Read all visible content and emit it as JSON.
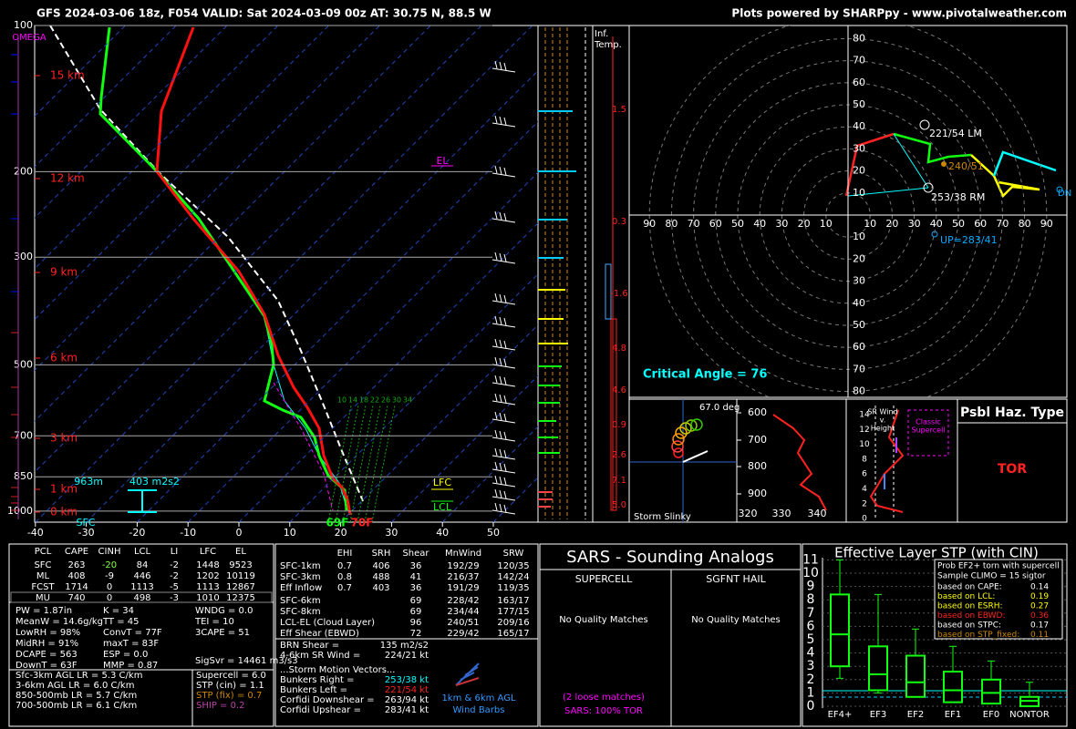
{
  "header": {
    "title": "GFS 2024-03-06 18z, F054  VALID: Sat 2024-03-09 00z  AT: 30.75 N, 88.5 W",
    "credit": "Plots powered by SHARPpy - www.pivotalweather.com"
  },
  "skewt": {
    "omega": "OMEGA",
    "pressures": [
      100,
      200,
      300,
      500,
      700,
      850,
      1000
    ],
    "heights": [
      "15 km",
      "12 km",
      "9 km",
      "6 km",
      "3 km",
      "1 km",
      "0 km"
    ],
    "temps": [
      -40,
      -30,
      -20,
      -10,
      0,
      10,
      20,
      30,
      40,
      50
    ],
    "el": "EL",
    "lfc": "LFC",
    "lcl": "LCL",
    "eff_depth": "963m",
    "eff_srh": "403 m2s2",
    "sfc": "SFC",
    "dewpoint": "69F",
    "temperature": "70F",
    "mixing_ratios": [
      10,
      14,
      18,
      22,
      26,
      30,
      34
    ]
  },
  "inferred_temp": {
    "label": [
      "Inf.",
      "Temp."
    ],
    "values": [
      "1.5",
      "0.3",
      "-1.6",
      "4.8",
      "4.6",
      "0.9",
      "2.6",
      "7.1",
      "5.0"
    ]
  },
  "hodograph": {
    "speeds": [
      10,
      20,
      30,
      40,
      50,
      60,
      70,
      80,
      90
    ],
    "left_mover": "221/54 LM",
    "mean_wind": "240/51",
    "right_mover": "253/38 RM",
    "upshear": "UP=283/41",
    "downshear": "DN",
    "critical_angle": "Critical Angle = 76"
  },
  "slinky": {
    "angle": "67.0 deg",
    "title": "Storm Slinky"
  },
  "theta_e": {
    "pressures": [
      600,
      700,
      800,
      900
    ],
    "thetas": [
      320,
      330,
      340
    ]
  },
  "sr_wind": {
    "heights": [
      14,
      12,
      10,
      8,
      6,
      4,
      2,
      0
    ],
    "title": [
      "SR Wind",
      "v.",
      "Height"
    ],
    "note": [
      "Classic",
      "Supercell"
    ]
  },
  "hazard": {
    "title": "Psbl Haz. Type",
    "type": "TOR"
  },
  "thermo": {
    "header": [
      "PCL",
      "CAPE",
      "CINH",
      "LCL",
      "LI",
      "LFC",
      "EL"
    ],
    "rows": [
      [
        "SFC",
        263,
        -20,
        84,
        -2,
        1448,
        9523
      ],
      [
        "ML",
        408,
        -9,
        446,
        -2,
        1202,
        10119
      ],
      [
        "FCST",
        1714,
        0,
        1113,
        -5,
        1113,
        12867
      ],
      [
        "MU",
        740,
        0,
        498,
        -3,
        1010,
        12375
      ]
    ],
    "indices": [
      [
        "PW = 1.87in",
        "MeanW = 14.6g/kg",
        "LowRH = 98%",
        "MidRH = 91%",
        "DCAPE = 563",
        "DownT = 63F"
      ],
      [
        "K = 34",
        "TT = 45",
        "ConvT = 77F",
        "maxT = 83F",
        "ESP = 0.0",
        "MMP = 0.87"
      ],
      [
        "WNDG = 0.0",
        "TEI = 10",
        "3CAPE = 51"
      ]
    ],
    "sigsvr": "SigSvr = 14461 m3/s3",
    "lapse_rates": [
      "Sfc-3km AGL LR = 5.3 C/km",
      "3-6km AGL LR = 6.0 C/km",
      "850-500mb LR = 5.7 C/km",
      "700-500mb LR = 6.1 C/km"
    ],
    "composites": [
      "Supercell = 6.0",
      "STP (cin) = 1.1",
      "STP (fix) = 0.7",
      "SHIP = 0.2"
    ]
  },
  "kinematics": {
    "header": [
      "EHI",
      "SRH",
      "Shear",
      "MnWind",
      "SRW"
    ],
    "rows": [
      [
        "SFC-1km",
        "0.7",
        406,
        36,
        "192/29",
        "120/35"
      ],
      [
        "SFC-3km",
        "0.8",
        488,
        41,
        "216/37",
        "142/24"
      ],
      [
        "Eff Inflow",
        "0.7",
        403,
        36,
        "191/29",
        "119/35"
      ],
      [
        "SFC-6km",
        null,
        null,
        69,
        "228/42",
        "163/17"
      ],
      [
        "SFC-8km",
        null,
        null,
        69,
        "234/44",
        "177/15"
      ],
      [
        "LCL-EL (Cloud Layer)",
        null,
        null,
        96,
        "240/51",
        "209/16"
      ],
      [
        "Eff Shear (EBWD)",
        null,
        null,
        72,
        "229/42",
        "165/17"
      ]
    ],
    "extra": [
      [
        "BRN Shear =",
        "135 m2/s2"
      ],
      [
        "4-6km SR Wind =",
        "224/21 kt"
      ]
    ],
    "motion_title": "...Storm Motion Vectors...",
    "motion": [
      [
        "Bunkers Right =",
        "253/38 kt"
      ],
      [
        "Bunkers Left =",
        "221/54 kt"
      ],
      [
        "Corfidi Downshear =",
        "263/94 kt"
      ],
      [
        "Corfidi Upshear =",
        "283/41 kt"
      ]
    ],
    "barbs": [
      "1km & 6km AGL",
      "Wind Barbs"
    ]
  },
  "sars": {
    "title": "SARS - Sounding Analogs",
    "supercell": "SUPERCELL",
    "hail": "SGFNT HAIL",
    "supercell_matches": "No Quality Matches",
    "hail_matches": "No Quality Matches",
    "loose": "(2 loose matches)",
    "result": "SARS: 100% TOR"
  },
  "stp": {
    "title": "Effective Layer STP (with CIN)",
    "yticks": [
      0,
      1,
      2,
      3,
      4,
      5,
      6,
      7,
      8,
      9,
      10,
      11
    ],
    "categories": [
      "EF4+",
      "EF3",
      "EF2",
      "EF1",
      "EF0",
      "NONTOR"
    ],
    "boxes": [
      [
        2.1,
        3.0,
        5.4,
        8.4,
        11.0
      ],
      [
        1.0,
        1.2,
        2.4,
        4.5,
        8.4
      ],
      [
        0.7,
        0.7,
        1.8,
        3.8,
        5.8
      ],
      [
        0.3,
        0.3,
        1.2,
        2.6,
        4.5
      ],
      [
        0.2,
        0.2,
        1.0,
        2.0,
        3.4
      ],
      [
        0,
        0,
        0.4,
        0.7,
        1.8
      ]
    ],
    "prob_title": [
      "Prob EF2+ torn with supercell",
      "Sample CLIMO = 15 sigtor"
    ],
    "probs": [
      [
        "based on CAPE:",
        "0.14"
      ],
      [
        "based on LCL:",
        "0.19"
      ],
      [
        "based on ESRH:",
        "0.27"
      ],
      [
        "based on EBWD:",
        "0.36"
      ],
      [
        "based on STPC:",
        "0.17"
      ],
      [
        "based on STP_fixed:",
        "0.11"
      ]
    ]
  }
}
